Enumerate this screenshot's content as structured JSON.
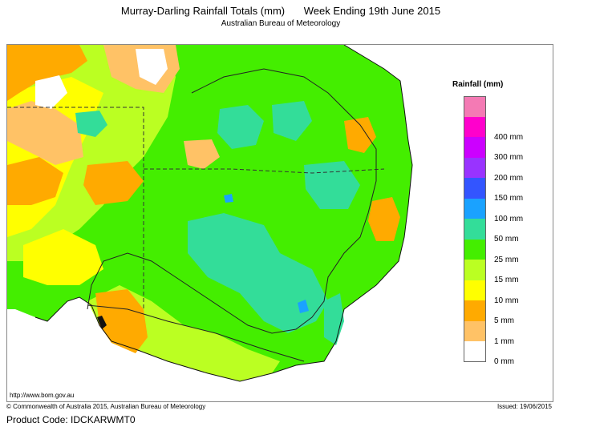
{
  "header": {
    "title": "Murray-Darling Rainfall Totals (mm)",
    "period": "Week Ending 19th June 2015",
    "agency": "Australian Bureau of Meteorology"
  },
  "legend": {
    "title": "Rainfall (mm)",
    "items": [
      {
        "label": "",
        "color": "#f47ab4"
      },
      {
        "label": "400 mm",
        "color": "#ff00cc"
      },
      {
        "label": "300 mm",
        "color": "#cc00ff"
      },
      {
        "label": "200 mm",
        "color": "#9933ff"
      },
      {
        "label": "150 mm",
        "color": "#3355ff"
      },
      {
        "label": "100 mm",
        "color": "#1aa2ff"
      },
      {
        "label": "50 mm",
        "color": "#33dd99"
      },
      {
        "label": "25 mm",
        "color": "#44ee00"
      },
      {
        "label": "15 mm",
        "color": "#bbff22"
      },
      {
        "label": "10 mm",
        "color": "#ffff00"
      },
      {
        "label": "5 mm",
        "color": "#ffaa00"
      },
      {
        "label": "1 mm",
        "color": "#ffc266"
      },
      {
        "label": "0 mm",
        "color": "#ffffff"
      }
    ]
  },
  "footer": {
    "url": "http://www.bom.gov.au",
    "copyright": "© Commonwealth of Australia 2015, Australian Bureau of Meteorology",
    "issued": "Issued: 19/06/2015",
    "product_label": "Product Code: ",
    "product_code": "IDCKARWMT0"
  }
}
